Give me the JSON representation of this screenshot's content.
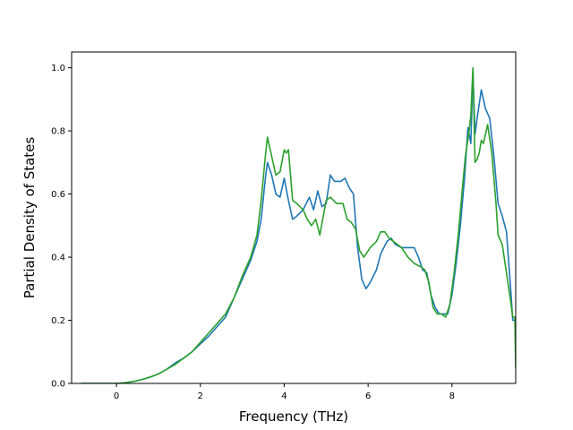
{
  "chart_data": {
    "type": "line",
    "title": "",
    "xlabel": "Frequency (THz)",
    "ylabel": "Partial Density of States",
    "xlim": [
      -1.07,
      9.52
    ],
    "ylim": [
      0.0,
      1.05
    ],
    "grid": false,
    "legend": "none",
    "x_ticks": [
      0,
      2,
      4,
      6,
      8
    ],
    "x_tick_labels": [
      "0",
      "2",
      "4",
      "6",
      "8"
    ],
    "y_ticks": [
      0.0,
      0.2,
      0.4,
      0.6,
      0.8,
      1.0
    ],
    "y_tick_labels": [
      "0.0",
      "0.2",
      "0.4",
      "0.6",
      "0.8",
      "1.0"
    ],
    "series": [
      {
        "color": "#1f77b4",
        "points": [
          [
            -0.85,
            0.0
          ],
          [
            0.0,
            0.0
          ],
          [
            0.2,
            0.002
          ],
          [
            0.4,
            0.006
          ],
          [
            0.6,
            0.012
          ],
          [
            0.8,
            0.02
          ],
          [
            1.0,
            0.03
          ],
          [
            1.2,
            0.045
          ],
          [
            1.4,
            0.065
          ],
          [
            1.6,
            0.08
          ],
          [
            1.8,
            0.1
          ],
          [
            2.0,
            0.125
          ],
          [
            2.2,
            0.15
          ],
          [
            2.4,
            0.18
          ],
          [
            2.6,
            0.21
          ],
          [
            2.8,
            0.27
          ],
          [
            3.0,
            0.33
          ],
          [
            3.2,
            0.39
          ],
          [
            3.35,
            0.45
          ],
          [
            3.45,
            0.52
          ],
          [
            3.55,
            0.65
          ],
          [
            3.6,
            0.7
          ],
          [
            3.7,
            0.66
          ],
          [
            3.8,
            0.6
          ],
          [
            3.9,
            0.59
          ],
          [
            4.0,
            0.65
          ],
          [
            4.1,
            0.58
          ],
          [
            4.2,
            0.52
          ],
          [
            4.3,
            0.53
          ],
          [
            4.45,
            0.55
          ],
          [
            4.6,
            0.59
          ],
          [
            4.7,
            0.55
          ],
          [
            4.8,
            0.61
          ],
          [
            4.9,
            0.56
          ],
          [
            5.0,
            0.57
          ],
          [
            5.1,
            0.66
          ],
          [
            5.2,
            0.64
          ],
          [
            5.35,
            0.64
          ],
          [
            5.45,
            0.65
          ],
          [
            5.55,
            0.62
          ],
          [
            5.65,
            0.6
          ],
          [
            5.75,
            0.43
          ],
          [
            5.85,
            0.33
          ],
          [
            5.95,
            0.3
          ],
          [
            6.05,
            0.32
          ],
          [
            6.2,
            0.36
          ],
          [
            6.3,
            0.41
          ],
          [
            6.45,
            0.45
          ],
          [
            6.55,
            0.46
          ],
          [
            6.65,
            0.44
          ],
          [
            6.8,
            0.43
          ],
          [
            6.95,
            0.43
          ],
          [
            7.1,
            0.43
          ],
          [
            7.2,
            0.4
          ],
          [
            7.3,
            0.36
          ],
          [
            7.4,
            0.35
          ],
          [
            7.5,
            0.28
          ],
          [
            7.6,
            0.24
          ],
          [
            7.7,
            0.22
          ],
          [
            7.8,
            0.22
          ],
          [
            7.9,
            0.22
          ],
          [
            8.0,
            0.28
          ],
          [
            8.1,
            0.38
          ],
          [
            8.2,
            0.5
          ],
          [
            8.3,
            0.65
          ],
          [
            8.38,
            0.81
          ],
          [
            8.45,
            0.76
          ],
          [
            8.5,
            0.99
          ],
          [
            8.55,
            0.79
          ],
          [
            8.6,
            0.84
          ],
          [
            8.7,
            0.93
          ],
          [
            8.8,
            0.87
          ],
          [
            8.9,
            0.84
          ],
          [
            9.0,
            0.72
          ],
          [
            9.1,
            0.57
          ],
          [
            9.2,
            0.53
          ],
          [
            9.3,
            0.48
          ],
          [
            9.4,
            0.3
          ],
          [
            9.45,
            0.2
          ],
          [
            9.5,
            0.2
          ],
          [
            9.52,
            0.21
          ],
          [
            9.55,
            0.05
          ],
          [
            9.6,
            0.0
          ],
          [
            10.5,
            0.0
          ]
        ]
      },
      {
        "color": "#2ca02c",
        "points": [
          [
            -0.85,
            0.0
          ],
          [
            0.0,
            0.0
          ],
          [
            0.2,
            0.002
          ],
          [
            0.4,
            0.006
          ],
          [
            0.6,
            0.012
          ],
          [
            0.8,
            0.02
          ],
          [
            1.0,
            0.03
          ],
          [
            1.2,
            0.045
          ],
          [
            1.4,
            0.06
          ],
          [
            1.6,
            0.08
          ],
          [
            1.8,
            0.1
          ],
          [
            2.0,
            0.13
          ],
          [
            2.2,
            0.16
          ],
          [
            2.4,
            0.19
          ],
          [
            2.6,
            0.22
          ],
          [
            2.8,
            0.27
          ],
          [
            3.0,
            0.34
          ],
          [
            3.2,
            0.4
          ],
          [
            3.35,
            0.47
          ],
          [
            3.45,
            0.58
          ],
          [
            3.55,
            0.72
          ],
          [
            3.6,
            0.78
          ],
          [
            3.7,
            0.72
          ],
          [
            3.8,
            0.66
          ],
          [
            3.9,
            0.67
          ],
          [
            4.0,
            0.74
          ],
          [
            4.05,
            0.73
          ],
          [
            4.1,
            0.74
          ],
          [
            4.2,
            0.58
          ],
          [
            4.3,
            0.57
          ],
          [
            4.45,
            0.55
          ],
          [
            4.55,
            0.52
          ],
          [
            4.65,
            0.5
          ],
          [
            4.75,
            0.52
          ],
          [
            4.85,
            0.47
          ],
          [
            5.0,
            0.58
          ],
          [
            5.1,
            0.59
          ],
          [
            5.25,
            0.57
          ],
          [
            5.4,
            0.57
          ],
          [
            5.5,
            0.52
          ],
          [
            5.6,
            0.51
          ],
          [
            5.7,
            0.49
          ],
          [
            5.8,
            0.42
          ],
          [
            5.9,
            0.4
          ],
          [
            6.05,
            0.43
          ],
          [
            6.2,
            0.45
          ],
          [
            6.3,
            0.48
          ],
          [
            6.4,
            0.48
          ],
          [
            6.5,
            0.46
          ],
          [
            6.6,
            0.45
          ],
          [
            6.8,
            0.43
          ],
          [
            6.95,
            0.4
          ],
          [
            7.1,
            0.38
          ],
          [
            7.25,
            0.37
          ],
          [
            7.35,
            0.36
          ],
          [
            7.45,
            0.32
          ],
          [
            7.55,
            0.24
          ],
          [
            7.65,
            0.22
          ],
          [
            7.75,
            0.22
          ],
          [
            7.85,
            0.21
          ],
          [
            7.95,
            0.25
          ],
          [
            8.05,
            0.35
          ],
          [
            8.15,
            0.47
          ],
          [
            8.25,
            0.62
          ],
          [
            8.32,
            0.72
          ],
          [
            8.4,
            0.79
          ],
          [
            8.45,
            0.85
          ],
          [
            8.5,
            1.0
          ],
          [
            8.55,
            0.7
          ],
          [
            8.6,
            0.71
          ],
          [
            8.65,
            0.73
          ],
          [
            8.7,
            0.77
          ],
          [
            8.75,
            0.76
          ],
          [
            8.85,
            0.82
          ],
          [
            8.95,
            0.73
          ],
          [
            9.05,
            0.57
          ],
          [
            9.1,
            0.47
          ],
          [
            9.2,
            0.44
          ],
          [
            9.3,
            0.35
          ],
          [
            9.4,
            0.26
          ],
          [
            9.45,
            0.21
          ],
          [
            9.5,
            0.21
          ],
          [
            9.52,
            0.05
          ],
          [
            9.6,
            0.0
          ],
          [
            10.5,
            0.0
          ]
        ]
      }
    ]
  }
}
